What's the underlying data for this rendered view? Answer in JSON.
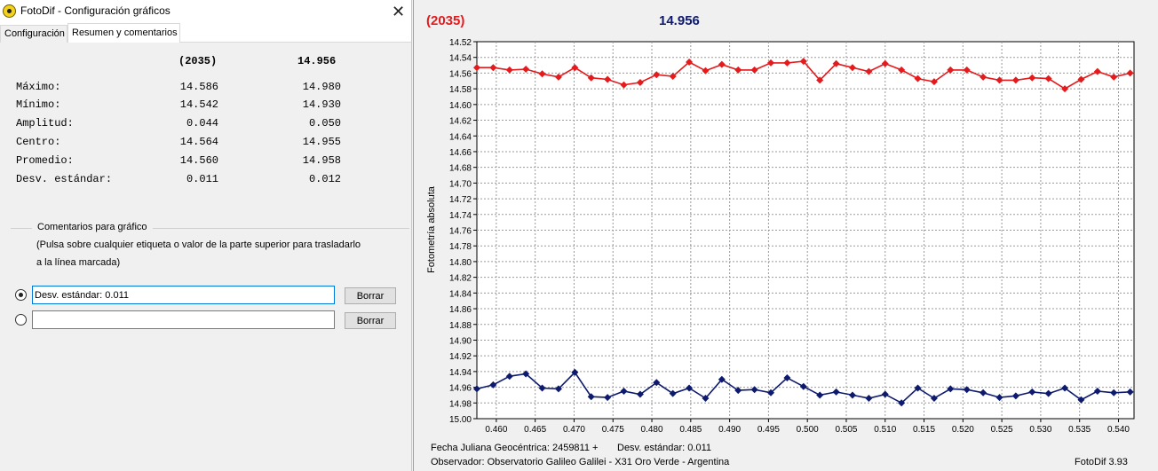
{
  "window": {
    "title": "FotoDif - Configuración gráficos",
    "close_icon": "close-icon"
  },
  "tabs": [
    {
      "label": "Configuración",
      "active": false
    },
    {
      "label": "Resumen y comentarios",
      "active": true
    }
  ],
  "summary": {
    "col1_header": "(2035)",
    "col2_header": "14.956",
    "rows": [
      {
        "label": "Máximo:",
        "v1": "14.586",
        "v2": "14.980"
      },
      {
        "label": "Mínimo:",
        "v1": "14.542",
        "v2": "14.930"
      },
      {
        "label": "Amplitud:",
        "v1": "0.044",
        "v2": "0.050"
      },
      {
        "label": "Centro:",
        "v1": "14.564",
        "v2": "14.955"
      },
      {
        "label": "Promedio:",
        "v1": "14.560",
        "v2": "14.958"
      },
      {
        "label": "Desv. estándar:",
        "v1": "0.011",
        "v2": "0.012"
      }
    ]
  },
  "comments": {
    "legend": "Comentarios para gráfico",
    "note_line1": "(Pulsa sobre cualquier etiqueta o valor de la parte superior para trasladarlo",
    "note_line2": "a la línea marcada)",
    "fields": [
      {
        "value": "Desv. estándar: 0.011",
        "selected": true
      },
      {
        "value": "",
        "selected": false
      }
    ],
    "delete_label": "Borrar"
  },
  "chart_data": {
    "type": "line",
    "label_left": "(2035)",
    "label_right": "14.956",
    "ylabel": "Fotometría absoluta",
    "y_inverted": true,
    "ylim": [
      14.52,
      15.0
    ],
    "yticks": [
      "14.52",
      "14.54",
      "14.56",
      "14.58",
      "14.60",
      "14.62",
      "14.64",
      "14.66",
      "14.68",
      "14.70",
      "14.72",
      "14.74",
      "14.76",
      "14.78",
      "14.80",
      "14.82",
      "14.84",
      "14.86",
      "14.88",
      "14.90",
      "14.92",
      "14.94",
      "14.96",
      "14.98",
      "15.00"
    ],
    "xlim": [
      0.4575,
      0.542
    ],
    "xticks": [
      "0.460",
      "0.465",
      "0.470",
      "0.475",
      "0.480",
      "0.485",
      "0.490",
      "0.495",
      "0.500",
      "0.505",
      "0.510",
      "0.515",
      "0.520",
      "0.525",
      "0.530",
      "0.535",
      "0.540"
    ],
    "grid": true,
    "x": [
      0.4575,
      0.4596,
      0.4617,
      0.4638,
      0.4659,
      0.468,
      0.4701,
      0.4722,
      0.4743,
      0.4764,
      0.4785,
      0.4806,
      0.4827,
      0.4848,
      0.4869,
      0.489,
      0.4911,
      0.4932,
      0.4953,
      0.4974,
      0.4995,
      0.5016,
      0.5037,
      0.5058,
      0.5079,
      0.51,
      0.5121,
      0.5142,
      0.5163,
      0.5184,
      0.5205,
      0.5226,
      0.5247,
      0.5268,
      0.5289,
      0.531,
      0.5331,
      0.5352,
      0.5373,
      0.5394,
      0.5415
    ],
    "series": [
      {
        "color": "#e41a1c",
        "values": [
          14.553,
          14.553,
          14.556,
          14.555,
          14.561,
          14.565,
          14.553,
          14.566,
          14.568,
          14.575,
          14.572,
          14.562,
          14.564,
          14.546,
          14.557,
          14.549,
          14.556,
          14.556,
          14.547,
          14.547,
          14.545,
          14.569,
          14.548,
          14.553,
          14.558,
          14.548,
          14.556,
          14.567,
          14.571,
          14.556,
          14.556,
          14.565,
          14.569,
          14.569,
          14.566,
          14.567,
          14.58,
          14.568,
          14.558,
          14.565,
          14.56
        ]
      },
      {
        "color": "#0d1a6e",
        "values": [
          14.962,
          14.957,
          14.946,
          14.943,
          14.961,
          14.962,
          14.941,
          14.972,
          14.973,
          14.965,
          14.969,
          14.954,
          14.968,
          14.961,
          14.974,
          14.95,
          14.964,
          14.963,
          14.967,
          14.948,
          14.959,
          14.97,
          14.966,
          14.97,
          14.974,
          14.969,
          14.98,
          14.961,
          14.974,
          14.962,
          14.963,
          14.967,
          14.973,
          14.971,
          14.966,
          14.968,
          14.961,
          14.976,
          14.965,
          14.967,
          14.966
        ]
      }
    ],
    "footer_line1": "Fecha Juliana Geocéntrica: 2459811 +",
    "footer_stat": "Desv. estándar: 0.011",
    "footer_line2": "Observador: Observatorio Galileo Galilei - X31 Oro Verde - Argentina",
    "footer_version": "FotoDif 3.93",
    "colors": {
      "red": "#e41a1c",
      "navy": "#0d1a6e"
    }
  }
}
